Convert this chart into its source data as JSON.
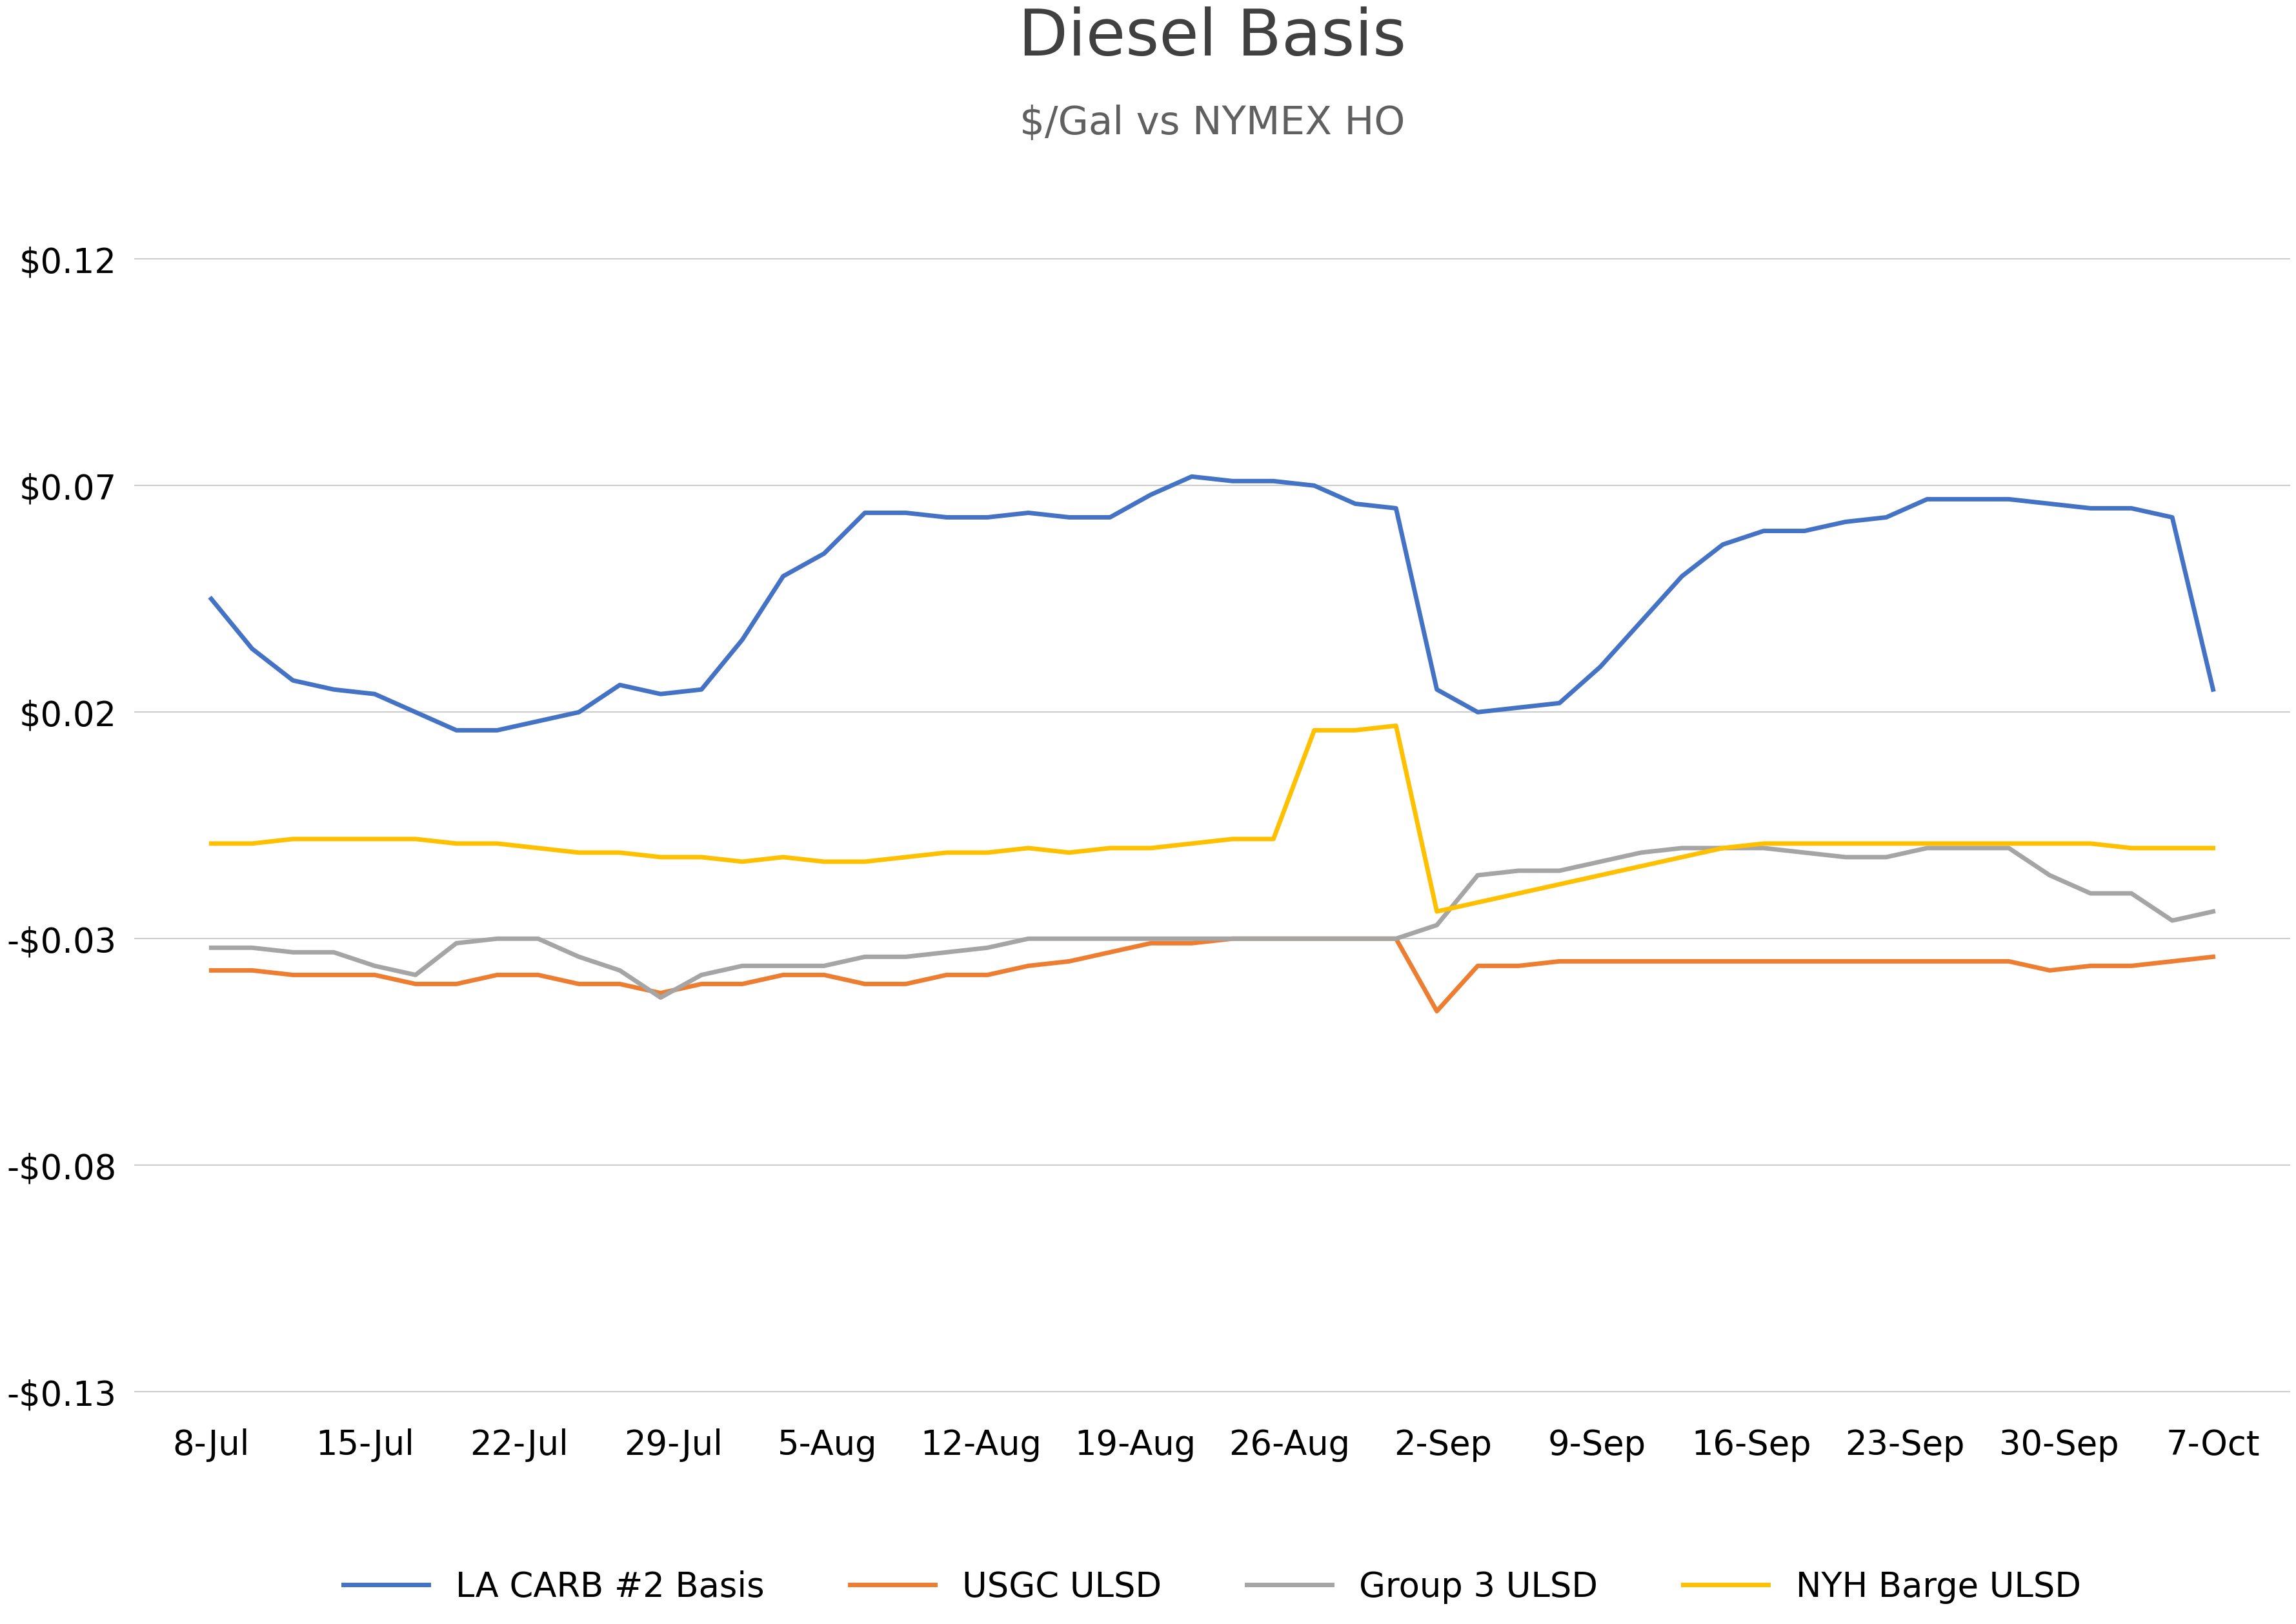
{
  "title": "Diesel Basis",
  "subtitle": "$/Gal vs NYMEX HO",
  "background_color": "#ffffff",
  "title_fontsize": 72,
  "subtitle_fontsize": 44,
  "ylim": [
    -0.135,
    0.135
  ],
  "yticks": [
    0.12,
    0.07,
    0.02,
    -0.03,
    -0.08,
    -0.13
  ],
  "grid_color": "#cccccc",
  "x_labels": [
    "8-Jul",
    "15-Jul",
    "22-Jul",
    "29-Jul",
    "5-Aug",
    "12-Aug",
    "19-Aug",
    "26-Aug",
    "2-Sep",
    "9-Sep",
    "16-Sep",
    "23-Sep",
    "30-Sep",
    "7-Oct"
  ],
  "tick_fontsize": 38,
  "legend_fontsize": 38,
  "series": [
    {
      "name": "LA CARB #2 Basis",
      "color": "#4472C4",
      "linewidth": 5,
      "data": [
        0.045,
        0.034,
        0.027,
        0.025,
        0.024,
        0.02,
        0.016,
        0.016,
        0.018,
        0.02,
        0.026,
        0.024,
        0.025,
        0.036,
        0.05,
        0.055,
        0.064,
        0.064,
        0.063,
        0.063,
        0.064,
        0.063,
        0.063,
        0.068,
        0.072,
        0.071,
        0.071,
        0.07,
        0.066,
        0.065,
        0.025,
        0.02,
        0.021,
        0.022,
        0.03,
        0.04,
        0.05,
        0.057,
        0.06,
        0.06,
        0.062,
        0.063,
        0.067,
        0.067,
        0.067,
        0.066,
        0.065,
        0.065,
        0.063,
        0.025
      ]
    },
    {
      "name": "USGC ULSD",
      "color": "#ED7D31",
      "linewidth": 5,
      "data": [
        -0.037,
        -0.037,
        -0.038,
        -0.038,
        -0.038,
        -0.04,
        -0.04,
        -0.038,
        -0.038,
        -0.04,
        -0.04,
        -0.042,
        -0.04,
        -0.04,
        -0.038,
        -0.038,
        -0.04,
        -0.04,
        -0.038,
        -0.038,
        -0.036,
        -0.035,
        -0.033,
        -0.031,
        -0.031,
        -0.03,
        -0.03,
        -0.03,
        -0.03,
        -0.03,
        -0.046,
        -0.036,
        -0.036,
        -0.035,
        -0.035,
        -0.035,
        -0.035,
        -0.035,
        -0.035,
        -0.035,
        -0.035,
        -0.035,
        -0.035,
        -0.035,
        -0.035,
        -0.037,
        -0.036,
        -0.036,
        -0.035,
        -0.034
      ]
    },
    {
      "name": "Group 3 ULSD",
      "color": "#A5A5A5",
      "linewidth": 5,
      "data": [
        -0.032,
        -0.032,
        -0.033,
        -0.033,
        -0.036,
        -0.038,
        -0.031,
        -0.03,
        -0.03,
        -0.034,
        -0.037,
        -0.043,
        -0.038,
        -0.036,
        -0.036,
        -0.036,
        -0.034,
        -0.034,
        -0.033,
        -0.032,
        -0.03,
        -0.03,
        -0.03,
        -0.03,
        -0.03,
        -0.03,
        -0.03,
        -0.03,
        -0.03,
        -0.03,
        -0.027,
        -0.016,
        -0.015,
        -0.015,
        -0.013,
        -0.011,
        -0.01,
        -0.01,
        -0.01,
        -0.011,
        -0.012,
        -0.012,
        -0.01,
        -0.01,
        -0.01,
        -0.016,
        -0.02,
        -0.02,
        -0.026,
        -0.024
      ]
    },
    {
      "name": "NYH Barge ULSD",
      "color": "#FFC000",
      "linewidth": 5,
      "data": [
        -0.009,
        -0.009,
        -0.008,
        -0.008,
        -0.008,
        -0.008,
        -0.009,
        -0.009,
        -0.01,
        -0.011,
        -0.011,
        -0.012,
        -0.012,
        -0.013,
        -0.012,
        -0.013,
        -0.013,
        -0.012,
        -0.011,
        -0.011,
        -0.01,
        -0.011,
        -0.01,
        -0.01,
        -0.009,
        -0.008,
        -0.008,
        0.016,
        0.016,
        0.017,
        -0.024,
        -0.022,
        -0.02,
        -0.018,
        -0.016,
        -0.014,
        -0.012,
        -0.01,
        -0.009,
        -0.009,
        -0.009,
        -0.009,
        -0.009,
        -0.009,
        -0.009,
        -0.009,
        -0.009,
        -0.01,
        -0.01,
        -0.01
      ]
    }
  ]
}
